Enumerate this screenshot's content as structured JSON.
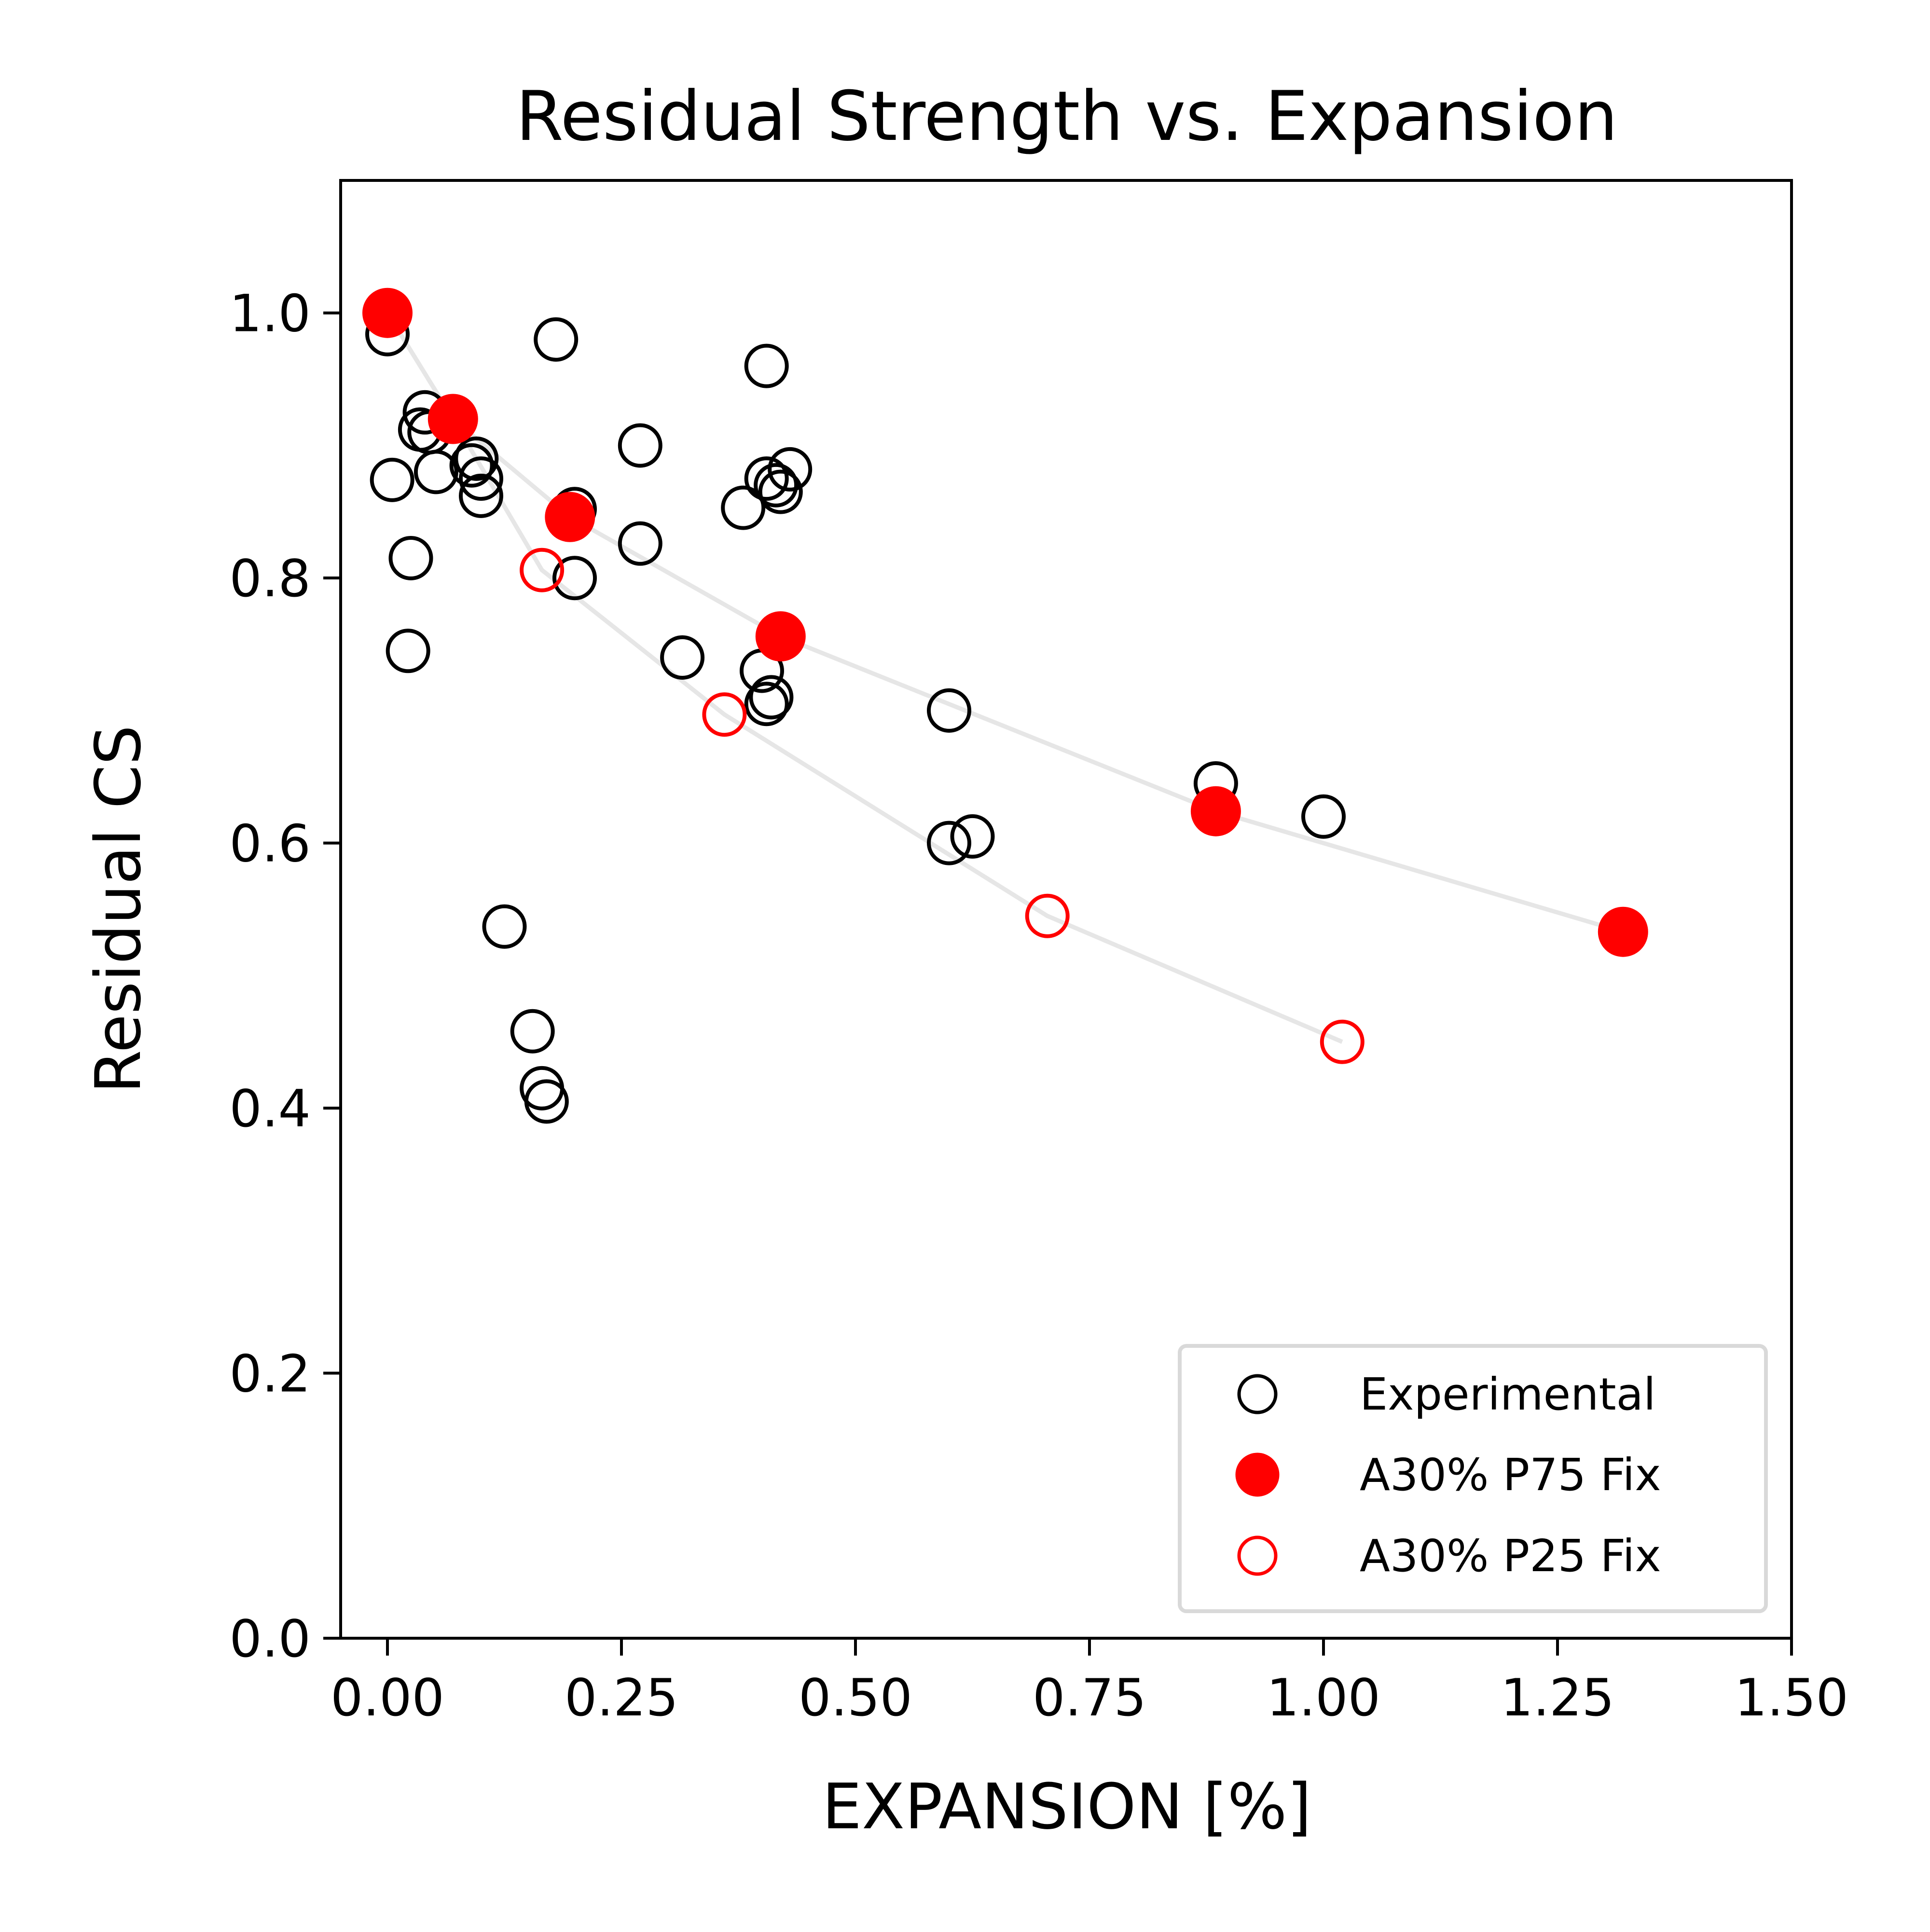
{
  "chart_data": {
    "type": "scatter",
    "title": "Residual Strength vs. Expansion",
    "xlabel": "EXPANSION [%]",
    "ylabel": "Residual CS",
    "xlim": [
      -0.05,
      1.5
    ],
    "ylim": [
      0.0,
      1.1
    ],
    "xticks": [
      0.0,
      0.25,
      0.5,
      0.75,
      1.0,
      1.25,
      1.5
    ],
    "xtick_labels": [
      "0.00",
      "0.25",
      "0.50",
      "0.75",
      "1.00",
      "1.25",
      "1.50"
    ],
    "yticks": [
      0.0,
      0.2,
      0.4,
      0.6,
      0.8,
      1.0
    ],
    "ytick_labels": [
      "0.0",
      "0.2",
      "0.4",
      "0.6",
      "0.8",
      "1.0"
    ],
    "grid": false,
    "legend_position": "lower-right",
    "series": [
      {
        "name": "Experimental",
        "marker": "open-circle",
        "color": "#000000",
        "points": [
          [
            0.0,
            0.984
          ],
          [
            0.005,
            0.874
          ],
          [
            0.022,
            0.745
          ],
          [
            0.025,
            0.815
          ],
          [
            0.035,
            0.912
          ],
          [
            0.04,
            0.925
          ],
          [
            0.045,
            0.91
          ],
          [
            0.052,
            0.88
          ],
          [
            0.09,
            0.885
          ],
          [
            0.1,
            0.875
          ],
          [
            0.1,
            0.862
          ],
          [
            0.095,
            0.89
          ],
          [
            0.125,
            0.537
          ],
          [
            0.155,
            0.458
          ],
          [
            0.165,
            0.415
          ],
          [
            0.17,
            0.405
          ],
          [
            0.18,
            0.98
          ],
          [
            0.2,
            0.852
          ],
          [
            0.2,
            0.8
          ],
          [
            0.27,
            0.9
          ],
          [
            0.27,
            0.826
          ],
          [
            0.315,
            0.74
          ],
          [
            0.38,
            0.853
          ],
          [
            0.4,
            0.73
          ],
          [
            0.405,
            0.705
          ],
          [
            0.41,
            0.71
          ],
          [
            0.405,
            0.875
          ],
          [
            0.405,
            0.96
          ],
          [
            0.415,
            0.87
          ],
          [
            0.42,
            0.865
          ],
          [
            0.43,
            0.882
          ],
          [
            0.6,
            0.6
          ],
          [
            0.6,
            0.7
          ],
          [
            0.625,
            0.605
          ],
          [
            0.885,
            0.645
          ],
          [
            1.0,
            0.62
          ]
        ]
      },
      {
        "name": "A30% P75 Fix",
        "marker": "filled-circle",
        "color": "#ff0000",
        "points": [
          [
            0.0,
            1.0
          ],
          [
            0.07,
            0.92
          ],
          [
            0.195,
            0.846
          ],
          [
            0.42,
            0.756
          ],
          [
            0.885,
            0.624
          ],
          [
            1.32,
            0.533
          ]
        ]
      },
      {
        "name": "A30% P25 Fix",
        "marker": "open-circle",
        "color": "#ff0000",
        "points": [
          [
            0.165,
            0.806
          ],
          [
            0.36,
            0.697
          ],
          [
            0.705,
            0.545
          ],
          [
            1.02,
            0.45
          ]
        ]
      }
    ],
    "fit_lines": [
      {
        "color": "#e6e6e6",
        "points": [
          [
            0.0,
            1.0
          ],
          [
            0.07,
            0.92
          ],
          [
            0.195,
            0.846
          ],
          [
            0.42,
            0.756
          ],
          [
            0.885,
            0.624
          ],
          [
            1.32,
            0.533
          ]
        ]
      },
      {
        "color": "#e6e6e6",
        "points": [
          [
            0.0,
            1.0
          ],
          [
            0.07,
            0.92
          ],
          [
            0.165,
            0.806
          ],
          [
            0.36,
            0.697
          ],
          [
            0.705,
            0.545
          ],
          [
            1.02,
            0.45
          ]
        ]
      }
    ]
  }
}
